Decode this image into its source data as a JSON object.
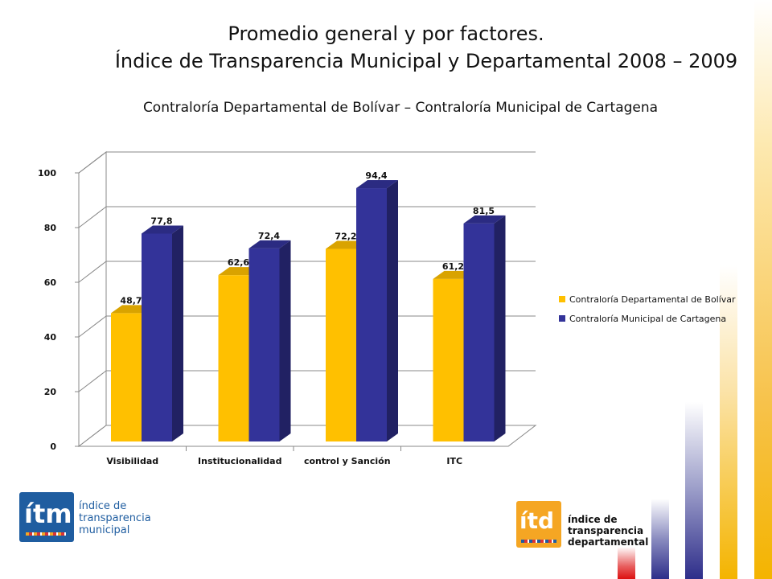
{
  "header": {
    "title_line1": "Promedio general y por factores.",
    "title_line2": "Índice de Transparencia Municipal y Departamental 2008 – 2009",
    "subtitle": "Contraloría Departamental de Bolívar – Contraloría Municipal de Cartagena"
  },
  "chart_data": {
    "type": "bar",
    "categories": [
      "Visibilidad",
      "Institucionalidad",
      "control y Sanción",
      "ITC"
    ],
    "series": [
      {
        "name": "Contraloría Departamental de Bolívar",
        "values": [
          48.7,
          62.6,
          72.2,
          61.2
        ],
        "labels": [
          "48,7",
          "62,6",
          "72,2",
          "61,2"
        ],
        "color": "#FFC000"
      },
      {
        "name": "Contraloría Municipal de Cartagena",
        "values": [
          77.8,
          72.4,
          94.4,
          81.5
        ],
        "labels": [
          "77,8",
          "72,4",
          "94,4",
          "81,5"
        ],
        "color": "#333399"
      }
    ],
    "ylim": [
      0,
      100
    ],
    "yticks": [
      0,
      20,
      40,
      60,
      80,
      100
    ],
    "grid": true,
    "legend_position": "right",
    "title": "",
    "xlabel": "",
    "ylabel": ""
  },
  "logos": {
    "itm": {
      "mark": "ítm",
      "line1": "índice de",
      "line2": "transparencia",
      "line3": "municipal"
    },
    "itd": {
      "mark": "ítd",
      "line1": "índice de",
      "line2": "transparencia",
      "line3": "departamental"
    }
  },
  "colors": {
    "blue": "#333399",
    "gold": "#FFC000",
    "itm_blue": "#1F5DA0",
    "itd_orange": "#F5A623"
  }
}
